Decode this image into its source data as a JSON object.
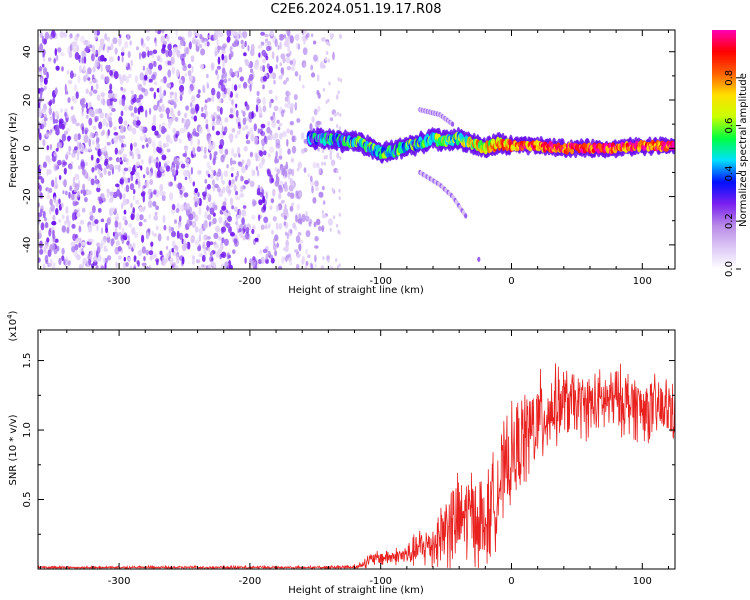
{
  "figure_title": "C2E6.2024.051.19.17.R08",
  "colors": {
    "snr_line": "#e8201e",
    "colormap": [
      "#ffffff",
      "#dcc8f6",
      "#b98ae8",
      "#7a1ff0",
      "#0010ff",
      "#00e0ff",
      "#00ff40",
      "#c8ff00",
      "#ffe000",
      "#ff6000",
      "#ff0000",
      "#ff00b4"
    ]
  },
  "chart_data": [
    {
      "type": "heatmap",
      "title": "",
      "xlabel": "Height of straight line (km)",
      "ylabel": "Frequency (Hz)",
      "xlim": [
        -362,
        125
      ],
      "ylim": [
        -50,
        49
      ],
      "xticks": [
        -300,
        -200,
        -100,
        0,
        100
      ],
      "yticks": [
        -40,
        -20,
        0,
        20,
        40
      ],
      "colorbar": {
        "label": "Normalized spectral amplitude",
        "range": [
          0,
          1
        ],
        "ticks": [
          "0.0",
          "0.2",
          "0.4",
          "0.6",
          "0.8"
        ],
        "tick_values": [
          0,
          0.2,
          0.4,
          0.6,
          0.8
        ]
      },
      "noise_region": {
        "x_range": [
          -362,
          -140
        ],
        "freq_range": [
          -50,
          49
        ],
        "amplitude": 0.1
      },
      "signal_trace": {
        "x": [
          -155,
          -140,
          -130,
          -120,
          -110,
          -100,
          -90,
          -80,
          -70,
          -60,
          -50,
          -40,
          -30,
          -20,
          -10,
          0,
          20,
          40,
          60,
          80,
          100,
          125
        ],
        "freq": [
          4,
          4,
          3,
          3,
          1,
          -2,
          -1,
          1,
          2,
          4,
          3,
          4,
          2,
          0,
          2,
          1,
          1,
          0,
          0,
          0,
          1,
          1
        ],
        "amplitude": [
          0.35,
          0.4,
          0.45,
          0.5,
          0.45,
          0.5,
          0.45,
          0.5,
          0.45,
          0.55,
          0.6,
          0.55,
          0.65,
          0.7,
          0.75,
          0.8,
          0.85,
          0.88,
          0.9,
          0.9,
          0.85,
          0.9
        ]
      },
      "faint_features": [
        {
          "x": [
            -70,
            -55,
            -45
          ],
          "freq": [
            16,
            14,
            10
          ]
        },
        {
          "x": [
            -70,
            -55,
            -45,
            -35
          ],
          "freq": [
            -10,
            -15,
            -20,
            -28
          ]
        },
        {
          "x": [
            -25
          ],
          "freq": [
            -46
          ]
        }
      ]
    },
    {
      "type": "line",
      "title": "",
      "xlabel": "Height of straight line (km)",
      "ylabel": "SNR (10 * v/v)",
      "multiplier_label": "(x10",
      "multiplier_exp": "4",
      "multiplier_close": ")",
      "xlim": [
        -362,
        125
      ],
      "ylim": [
        0,
        1.72
      ],
      "xticks": [
        -300,
        -200,
        -100,
        0,
        100
      ],
      "yticks": [
        0.5,
        1.0,
        1.5
      ],
      "ytick_labels": [
        "0.5",
        "1.0",
        "1.5"
      ],
      "series": [
        {
          "name": "SNR",
          "x": [
            -362,
            -250,
            -150,
            -120,
            -110,
            -100,
            -90,
            -80,
            -70,
            -60,
            -50,
            -40,
            -30,
            -20,
            -10,
            0,
            10,
            20,
            30,
            40,
            50,
            60,
            70,
            80,
            90,
            100,
            110,
            125
          ],
          "mean": [
            0.01,
            0.01,
            0.01,
            0.01,
            0.06,
            0.08,
            0.09,
            0.1,
            0.15,
            0.18,
            0.3,
            0.35,
            0.4,
            0.3,
            0.6,
            0.8,
            0.95,
            1.05,
            1.15,
            1.2,
            1.18,
            1.18,
            1.2,
            1.22,
            1.2,
            1.15,
            1.15,
            1.15
          ],
          "spread": [
            0.01,
            0.01,
            0.01,
            0.02,
            0.04,
            0.05,
            0.05,
            0.07,
            0.12,
            0.15,
            0.25,
            0.28,
            0.3,
            0.3,
            0.3,
            0.3,
            0.3,
            0.3,
            0.25,
            0.22,
            0.2,
            0.2,
            0.2,
            0.2,
            0.22,
            0.2,
            0.2,
            0.2
          ]
        }
      ]
    }
  ]
}
